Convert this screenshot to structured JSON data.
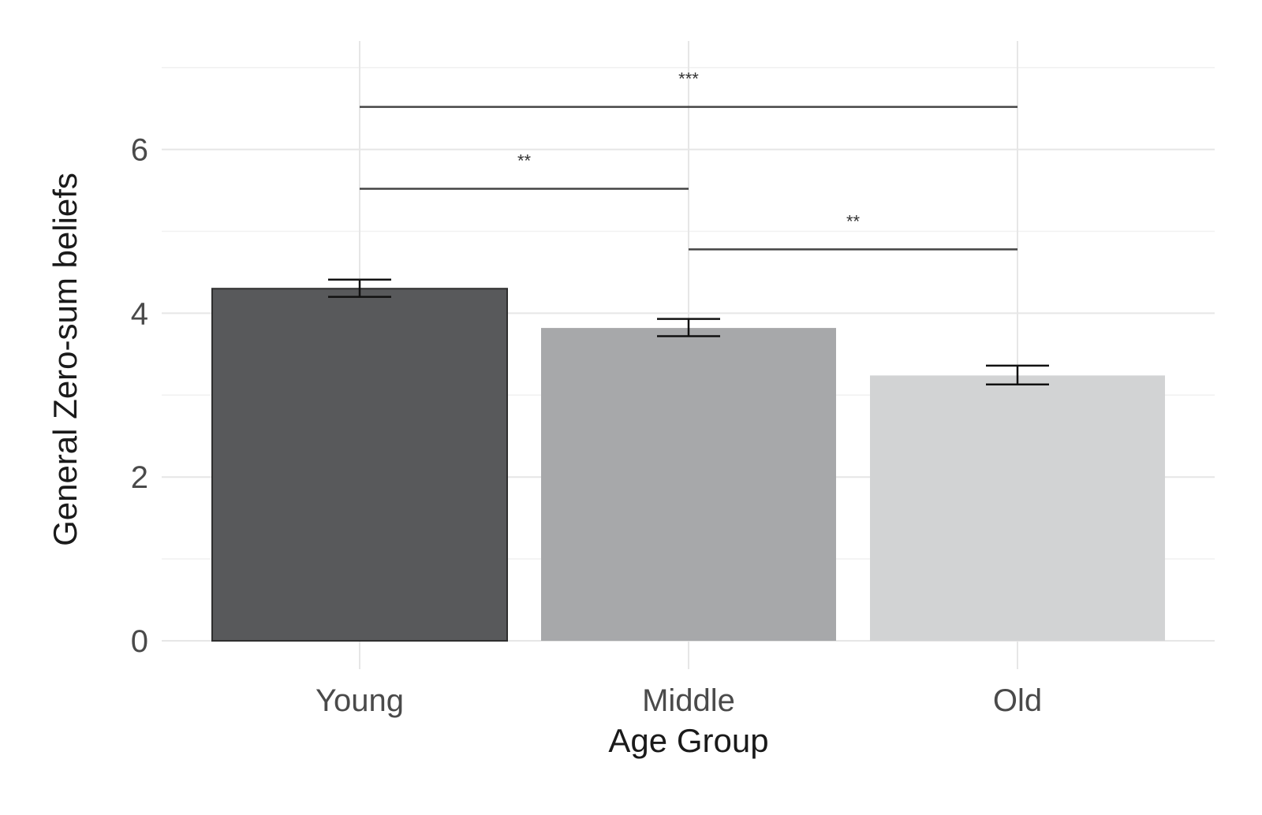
{
  "chart_data": {
    "type": "bar",
    "title": "",
    "xlabel": "Age Group",
    "ylabel": "General Zero-sum beliefs",
    "categories": [
      "Young",
      "Middle",
      "Old"
    ],
    "values": [
      4.3,
      3.82,
      3.24
    ],
    "error_bars": {
      "lower": [
        4.2,
        3.72,
        3.13
      ],
      "upper": [
        4.41,
        3.93,
        3.36
      ]
    },
    "bar_colors": [
      "#58595b",
      "#a7a8aa",
      "#d2d3d4"
    ],
    "ylim": [
      0,
      7
    ],
    "yticks": [
      0,
      2,
      4,
      6
    ],
    "grid": true,
    "legend": "none",
    "significance": [
      {
        "from": "Young",
        "to": "Old",
        "y": 6.52,
        "label": "***"
      },
      {
        "from": "Young",
        "to": "Middle",
        "y": 5.52,
        "label": "**"
      },
      {
        "from": "Middle",
        "to": "Old",
        "y": 4.78,
        "label": "**"
      }
    ]
  }
}
